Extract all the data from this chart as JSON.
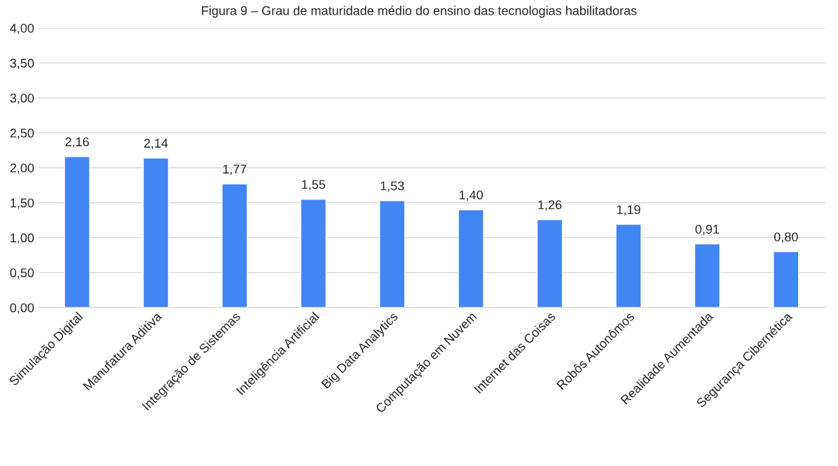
{
  "chart_data": {
    "type": "bar",
    "title": "Figura 9 – Grau de maturidade médio do ensino das tecnologias habilitadoras",
    "categories": [
      "Simulação Digital",
      "Manufatura Aditiva",
      "Integração de Sistemas",
      "Inteligência Artificial",
      "Big Data Analytics",
      "Computação em Nuvem",
      "Internet das Coisas",
      "Robôs Autonômos",
      "Realidade Aumentada",
      "Segurança Cibernética"
    ],
    "values": [
      2.16,
      2.14,
      1.77,
      1.55,
      1.53,
      1.4,
      1.26,
      1.19,
      0.91,
      0.8
    ],
    "value_labels": [
      "2,16",
      "2,14",
      "1,77",
      "1,55",
      "1,53",
      "1,40",
      "1,26",
      "1,19",
      "0,91",
      "0,80"
    ],
    "color": "#4285f4",
    "ylim": [
      0,
      4
    ],
    "yticks": [
      {
        "value": 0,
        "label": "0,00"
      },
      {
        "value": 0.5,
        "label": "0,50"
      },
      {
        "value": 1,
        "label": "1,00"
      },
      {
        "value": 1.5,
        "label": "1,50"
      },
      {
        "value": 2,
        "label": "2,00"
      },
      {
        "value": 2.5,
        "label": "2,50"
      },
      {
        "value": 3,
        "label": "3,00"
      },
      {
        "value": 3.5,
        "label": "3,50"
      },
      {
        "value": 4,
        "label": "4,00"
      }
    ],
    "grid": "y"
  }
}
